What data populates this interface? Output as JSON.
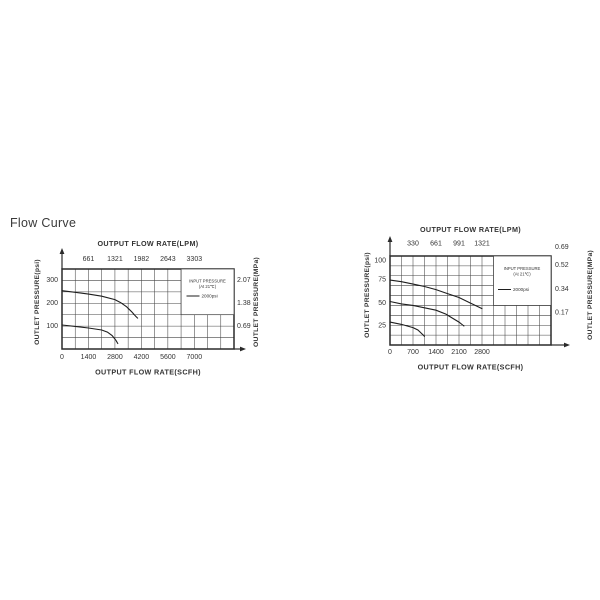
{
  "page": {
    "heading": "Flow Curve"
  },
  "chart_data": [
    {
      "type": "line",
      "name": "high-pressure-flow-curve",
      "title": "OUTPUT FLOW RATE(LPM)",
      "xlabel": "OUTPUT FLOW RATE(SCFH)",
      "ylabel_left": "OUTLET PRESSURE(psi)",
      "ylabel_right": "OUTLET PRESSURE(MPa)",
      "x_axis_bottom": {
        "unit": "SCFH",
        "ticks": [
          0,
          1400,
          2800,
          4200,
          5600,
          7000
        ],
        "max": 9100,
        "grid_step": 700
      },
      "x_axis_top": {
        "unit": "LPM",
        "ticks": [
          661,
          1321,
          1982,
          2643,
          3303
        ],
        "at_scfh": [
          1400,
          2800,
          4200,
          5600,
          7000
        ]
      },
      "y_axis_left": {
        "unit": "psi",
        "ticks": [
          100,
          200,
          300
        ],
        "max": 350,
        "grid_step": 50
      },
      "y_axis_right": {
        "unit": "MPa",
        "ticks": [
          "0.69",
          "1.38",
          "2.07"
        ],
        "at_psi": [
          100,
          200,
          300
        ]
      },
      "legend": {
        "title_line1": "INPUT PRESSURE",
        "title_line2": "(At 21℃)",
        "entries": [
          {
            "label": "2000psi"
          }
        ],
        "position": "top-right"
      },
      "series": [
        {
          "label": "2000psi",
          "points": [
            [
              0,
              255
            ],
            [
              700,
              248
            ],
            [
              1400,
              240
            ],
            [
              2100,
              231
            ],
            [
              2800,
              216
            ],
            [
              3100,
              203
            ],
            [
              3400,
              186
            ],
            [
              3700,
              162
            ],
            [
              3900,
              143
            ],
            [
              4000,
              135
            ]
          ]
        },
        {
          "label": "2000psi",
          "points": [
            [
              0,
              105
            ],
            [
              700,
              99
            ],
            [
              1400,
              92
            ],
            [
              2100,
              83
            ],
            [
              2400,
              74
            ],
            [
              2650,
              59
            ],
            [
              2850,
              38
            ],
            [
              2950,
              24
            ]
          ]
        }
      ]
    },
    {
      "type": "line",
      "name": "low-pressure-flow-curve",
      "title": "OUTPUT FLOW RATE(LPM)",
      "xlabel": "OUTPUT FLOW RATE(SCFH)",
      "ylabel_left": "OUTLET PRESSURE(psi)",
      "ylabel_right": "OUTLET PRESSURE(MPa)",
      "x_axis_bottom": {
        "unit": "SCFH",
        "ticks": [
          0,
          700,
          1400,
          2100,
          2800
        ],
        "max": 4900,
        "grid_step": 350
      },
      "x_axis_top": {
        "unit": "LPM",
        "ticks": [
          330,
          661,
          991,
          1321
        ],
        "at_scfh": [
          700,
          1400,
          2100,
          2800
        ]
      },
      "y_axis_left": {
        "unit": "psi",
        "ticks": [
          25,
          50,
          75,
          100
        ],
        "max": 112.5,
        "grid_step": 12.5
      },
      "y_axis_right": {
        "unit": "MPa",
        "ticks": [
          "0.17",
          "0.34",
          "0.52",
          "0.69"
        ],
        "at_psi": [
          25,
          50,
          75,
          100
        ]
      },
      "legend": {
        "title_line1": "INPUT PRESSURE",
        "title_line2": "(At 21℃)",
        "entries": [
          {
            "label": "2000psi"
          }
        ],
        "position": "top-right"
      },
      "series": [
        {
          "label": "2000psi",
          "points": [
            [
              0,
              82
            ],
            [
              350,
              80
            ],
            [
              700,
              77
            ],
            [
              1050,
              74
            ],
            [
              1400,
              70
            ],
            [
              1750,
              65
            ],
            [
              2100,
              60
            ],
            [
              2450,
              53
            ],
            [
              2800,
              46
            ]
          ]
        },
        {
          "label": "2000psi",
          "points": [
            [
              0,
              55
            ],
            [
              350,
              52
            ],
            [
              700,
              50
            ],
            [
              1050,
              47
            ],
            [
              1400,
              44
            ],
            [
              1700,
              39
            ],
            [
              1900,
              34
            ],
            [
              2100,
              29
            ],
            [
              2250,
              24
            ]
          ]
        },
        {
          "label": "2000psi",
          "points": [
            [
              0,
              29
            ],
            [
              350,
              26
            ],
            [
              700,
              22
            ],
            [
              850,
              19
            ],
            [
              950,
              15
            ],
            [
              1050,
              11
            ]
          ]
        }
      ]
    }
  ]
}
